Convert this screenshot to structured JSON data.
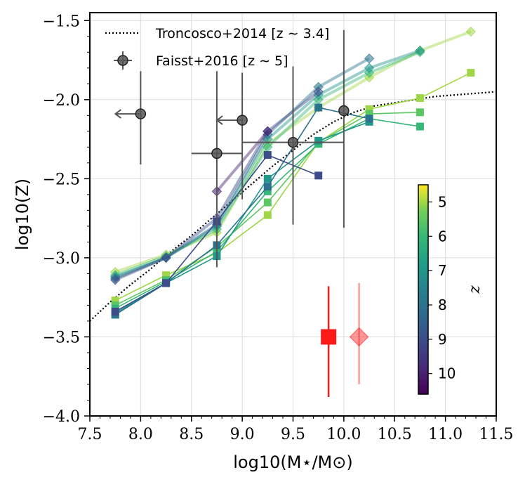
{
  "chart_data": {
    "type": "line",
    "xlabel": "log10(M⋆/M⊙)",
    "ylabel": "log10(Z)",
    "xlim": [
      7.5,
      11.5
    ],
    "ylim": [
      -4.0,
      -1.45
    ],
    "xticks": [
      "7.5",
      "8.0",
      "8.5",
      "9.0",
      "9.5",
      "10.0",
      "10.5",
      "11.0",
      "11.5"
    ],
    "yticks": [
      "−4.0",
      "−3.5",
      "−3.0",
      "−2.5",
      "−2.0",
      "−1.5"
    ],
    "grid": true,
    "legend_position": "top-left",
    "legend": [
      {
        "label": "Troncosco+2014 [z ∼ 3.4]",
        "marker": "dotted-line"
      },
      {
        "label": "Faisst+2016 [z ∼ 5]",
        "marker": "circle-errorbar"
      }
    ],
    "colorbar": {
      "label": "z",
      "ticks": [
        "5",
        "6",
        "7",
        "8",
        "9",
        "10"
      ],
      "range": [
        4.5,
        10.6
      ],
      "colormap": "viridis-reversed"
    },
    "troncoso_curve": {
      "x": [
        7.5,
        7.7,
        7.9,
        8.1,
        8.3,
        8.5,
        8.7,
        8.9,
        9.1,
        9.3,
        9.5,
        9.7,
        9.9,
        10.1,
        10.3,
        10.5,
        10.7,
        10.9,
        11.1,
        11.3,
        11.5
      ],
      "y": [
        -3.4,
        -3.28,
        -3.17,
        -3.07,
        -2.96,
        -2.86,
        -2.75,
        -2.64,
        -2.53,
        -2.42,
        -2.32,
        -2.22,
        -2.14,
        -2.08,
        -2.04,
        -2.02,
        -2.0,
        -1.98,
        -1.97,
        -1.96,
        -1.95
      ]
    },
    "faisst_points": [
      {
        "x": 8.0,
        "y": -2.09,
        "yerr_low": 0.32,
        "yerr_high": 0.27,
        "upper_limit_arrow": true
      },
      {
        "x": 8.75,
        "y": -2.34,
        "xerr": 0.25,
        "yerr_low": 0.72,
        "yerr_high": 0.52
      },
      {
        "x": 9.0,
        "y": -2.13,
        "yerr_low": 0.5,
        "yerr_high": 0.3,
        "upper_limit_arrow": true
      },
      {
        "x": 9.5,
        "y": -2.27,
        "xerr": 0.5,
        "yerr_low": 0.52,
        "yerr_high": 0.48
      },
      {
        "x": 10.0,
        "y": -2.07,
        "yerr_low": 0.74,
        "yerr_high": 0.51
      }
    ],
    "series_squares": [
      {
        "z": 5,
        "x": [
          7.75,
          8.25,
          8.75,
          9.25,
          9.75,
          10.25,
          10.75,
          11.25
        ],
        "y": [
          -3.27,
          -3.11,
          -2.97,
          -2.73,
          -2.27,
          -2.06,
          -1.99,
          -1.83
        ]
      },
      {
        "z": 5.5,
        "x": [
          7.75,
          8.25,
          8.75,
          9.25,
          9.75,
          10.25,
          10.75
        ],
        "y": [
          -3.3,
          -3.14,
          -2.93,
          -2.65,
          -2.27,
          -2.09,
          -2.08
        ]
      },
      {
        "z": 6,
        "x": [
          7.75,
          8.25,
          8.75,
          9.25,
          9.75,
          10.25,
          10.75
        ],
        "y": [
          -3.32,
          -3.15,
          -2.96,
          -2.58,
          -2.28,
          -2.12,
          -2.17
        ]
      },
      {
        "z": 7,
        "x": [
          7.75,
          8.25,
          8.75,
          9.25,
          9.75,
          10.25
        ],
        "y": [
          -3.35,
          -3.16,
          -2.99,
          -2.5,
          -2.26,
          -2.14
        ]
      },
      {
        "z": 8,
        "x": [
          7.75,
          8.25,
          8.75,
          9.25,
          9.75,
          10.25
        ],
        "y": [
          -3.36,
          -3.16,
          -2.92,
          -2.55,
          -2.05,
          -2.12
        ]
      },
      {
        "z": 9,
        "x": [
          7.75,
          8.25,
          8.75,
          9.25,
          9.75
        ],
        "y": [
          -3.34,
          -3.16,
          -2.77,
          -2.35,
          -2.48
        ]
      }
    ],
    "series_diamonds": [
      {
        "z": 5,
        "x": [
          7.75,
          8.25,
          8.75,
          9.25,
          9.75,
          10.25,
          10.75,
          11.25
        ],
        "y": [
          -3.09,
          -2.98,
          -2.84,
          -2.28,
          -2.05,
          -1.86,
          -1.69,
          -1.57
        ]
      },
      {
        "z": 6,
        "x": [
          7.75,
          8.25,
          8.75,
          9.25,
          9.75,
          10.25,
          10.75
        ],
        "y": [
          -3.11,
          -2.99,
          -2.82,
          -2.3,
          -2.0,
          -1.83,
          -1.7
        ]
      },
      {
        "z": 7,
        "x": [
          7.75,
          8.25,
          8.75,
          9.25,
          9.75,
          10.25,
          10.75
        ],
        "y": [
          -3.12,
          -3.0,
          -2.8,
          -2.25,
          -1.97,
          -1.8,
          -1.69
        ]
      },
      {
        "z": 8,
        "x": [
          7.75,
          8.25,
          8.75,
          9.25,
          9.75,
          10.25
        ],
        "y": [
          -3.13,
          -3.0,
          -2.79,
          -2.22,
          -1.92,
          -1.74
        ]
      },
      {
        "z": 9,
        "x": [
          7.75,
          8.25,
          8.75,
          9.25,
          9.75
        ],
        "y": [
          -3.14,
          -3.0,
          -2.75,
          -2.2,
          -1.95
        ]
      },
      {
        "z": 10,
        "x": [
          8.75,
          9.25
        ],
        "y": [
          -2.58,
          -2.2
        ]
      }
    ],
    "red_points": [
      {
        "marker": "square",
        "x": 9.85,
        "y": -3.5,
        "yerr_low": 0.38,
        "yerr_high": 0.32,
        "opacity": 1.0
      },
      {
        "marker": "diamond",
        "x": 10.15,
        "y": -3.5,
        "yerr_low": 0.3,
        "yerr_high": 0.34,
        "opacity": 0.45
      }
    ]
  }
}
